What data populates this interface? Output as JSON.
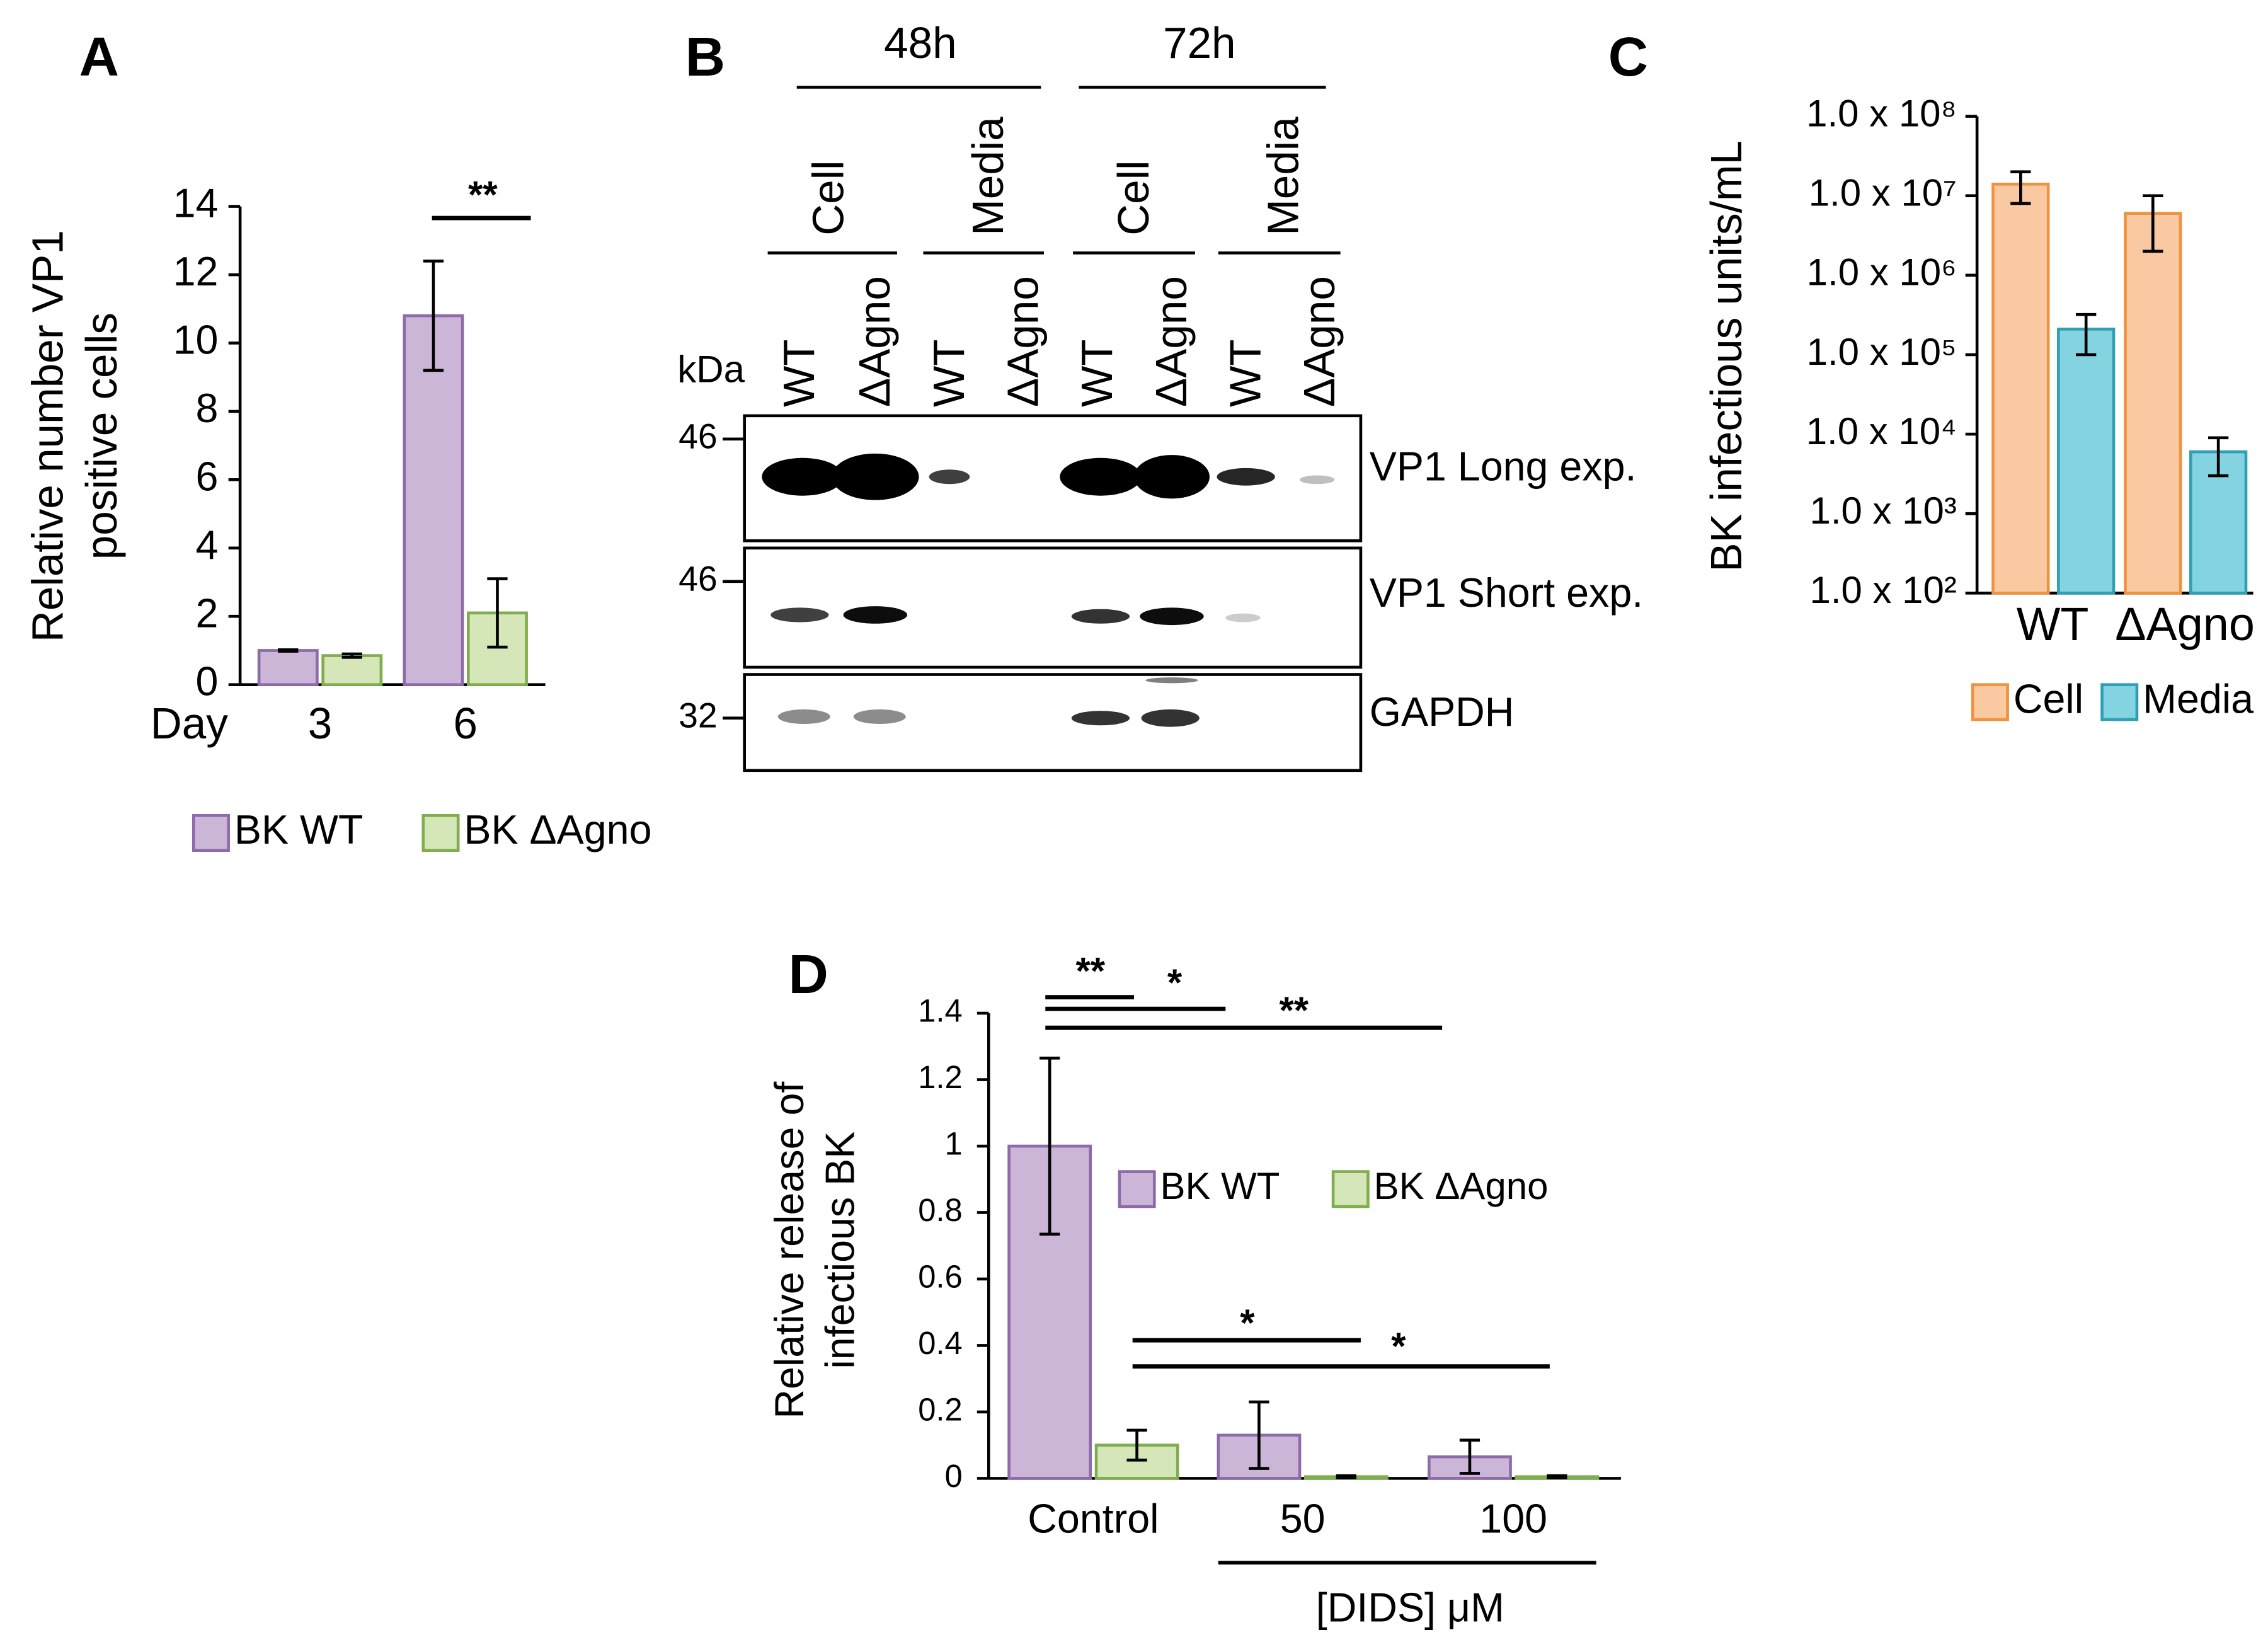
{
  "chart_data": [
    {
      "type": "bar",
      "panel": "A",
      "y_label": [
        "Relative number VP1",
        "positive cells"
      ],
      "x_label": "Day",
      "categories": [
        "3",
        "6"
      ],
      "series": [
        {
          "name": "BK WT",
          "color": "#cbb6d8",
          "edgecolor": "#8e6aa8",
          "values": [
            1,
            10.8
          ],
          "errors": [
            0.02,
            1.6
          ]
        },
        {
          "name": "BK ΔAgno",
          "color": "#d5e6b8",
          "edgecolor": "#80ad4f",
          "values": [
            0.85,
            2.1
          ],
          "errors": [
            0.05,
            1.0
          ]
        }
      ],
      "ylim": [
        0,
        14
      ],
      "yticks": [
        0,
        2,
        4,
        6,
        8,
        10,
        12,
        14
      ],
      "log_scale": false,
      "annotations": [
        "**"
      ]
    },
    {
      "type": "bar",
      "panel": "C",
      "y_label": [
        "BK infectious units/mL"
      ],
      "categories": [
        "WT",
        "ΔAgno"
      ],
      "series": [
        {
          "name": "Cell",
          "color": "#f9c9a1",
          "edgecolor": "#f0923e",
          "values": [
            14000000,
            6000000
          ],
          "errors": [
            6000000,
            4000000
          ]
        },
        {
          "name": "Media",
          "color": "#84d3e0",
          "edgecolor": "#2e9fb5",
          "values": [
            210000,
            6000
          ],
          "errors": [
            110000,
            3000
          ]
        }
      ],
      "ylim": [
        100,
        100000000
      ],
      "yticks": [
        {
          "value": 100,
          "label": "1.0 x 10²"
        },
        {
          "value": 1000,
          "label": "1.0 x 10³"
        },
        {
          "value": 10000,
          "label": "1.0 x 10⁴"
        },
        {
          "value": 100000,
          "label": "1.0 x 10⁵"
        },
        {
          "value": 1000000,
          "label": "1.0 x 10⁶"
        },
        {
          "value": 10000000,
          "label": "1.0 x 10⁷"
        },
        {
          "value": 100000000,
          "label": "1.0 x 10⁸"
        }
      ],
      "log_scale": true,
      "annotations": []
    },
    {
      "type": "bar",
      "panel": "D",
      "y_label": [
        "Relative release of",
        "infectious BK"
      ],
      "x_label": "[DIDS] μM",
      "categories": [
        "Control",
        "50",
        "100"
      ],
      "series": [
        {
          "name": "BK WT",
          "color": "#cbb6d8",
          "edgecolor": "#8e6aa8",
          "values": [
            1,
            0.13,
            0.065
          ],
          "errors": [
            0.265,
            0.1,
            0.05
          ]
        },
        {
          "name": "BK ΔAgno",
          "color": "#d5e6b8",
          "edgecolor": "#80ad4f",
          "values": [
            0.1,
            0.005,
            0.005
          ],
          "errors": [
            0.045,
            0.003,
            0.003
          ]
        }
      ],
      "ylim": [
        0,
        1.4
      ],
      "yticks": [
        0,
        0.2,
        0.4,
        0.6,
        0.8,
        1,
        1.2,
        1.4
      ],
      "log_scale": false,
      "annotations": [
        "**",
        "*",
        "**",
        "*",
        "*"
      ]
    }
  ],
  "blot": {
    "panel": "B",
    "time_points": [
      "48h",
      "72h"
    ],
    "fractions": [
      "Cell",
      "Media",
      "Cell",
      "Media"
    ],
    "lanes": [
      "WT",
      "ΔAgno",
      "WT",
      "ΔAgno",
      "WT",
      "ΔAgno",
      "WT",
      "ΔAgno"
    ],
    "unit": "kDa",
    "markers": [
      "46",
      "46",
      "32"
    ],
    "strips": [
      "VP1 Long exp.",
      "VP1 Short exp.",
      "GAPDH"
    ]
  }
}
